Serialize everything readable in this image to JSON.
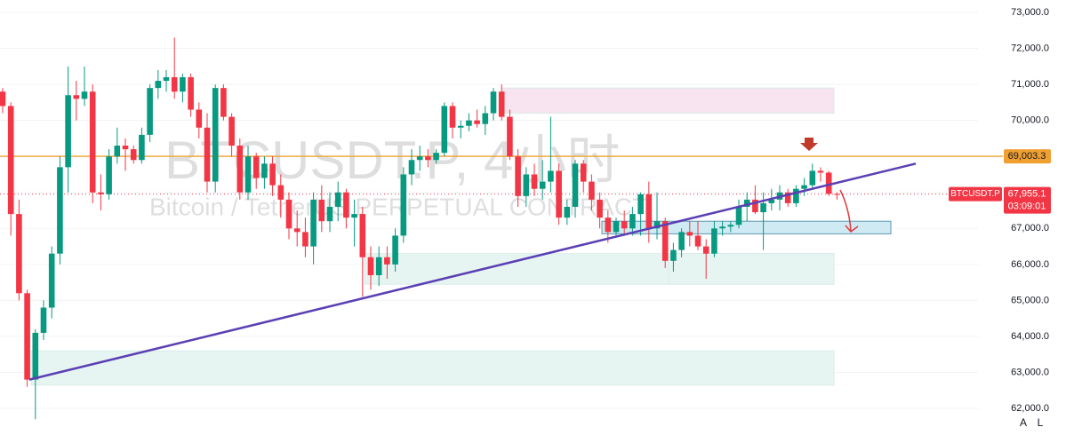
{
  "chart_data": {
    "type": "candlestick",
    "watermark": "BTCUSDT.P, 4小时",
    "watermark_subtitle": "Bitcoin / TetherUS PERPETUAL CONTRACT",
    "up_color": "#089981",
    "down_color": "#f23645",
    "ylim": [
      61262,
      73345
    ],
    "yticks": [
      {
        "value": 62000,
        "label": "62,000.0"
      },
      {
        "value": 63000,
        "label": "63,000.0"
      },
      {
        "value": 64000,
        "label": "64,000.0"
      },
      {
        "value": 65000,
        "label": "65,000.0"
      },
      {
        "value": 66000,
        "label": "66,000.0"
      },
      {
        "value": 67000,
        "label": "67,000.0"
      },
      {
        "value": 68000,
        "label": "68,000.0"
      },
      {
        "value": 69000,
        "label": "69,000.0"
      },
      {
        "value": 70000,
        "label": "70,000.0"
      },
      {
        "value": 71000,
        "label": "71,000.0"
      },
      {
        "value": 72000,
        "label": "72,000.0"
      },
      {
        "value": 73000,
        "label": "73,000.0"
      }
    ],
    "grid": true,
    "candles": [
      [
        70800,
        70900,
        70200,
        70400
      ],
      [
        70400,
        70500,
        66800,
        67400
      ],
      [
        67400,
        67800,
        65000,
        65200
      ],
      [
        65200,
        65300,
        62600,
        62800
      ],
      [
        62800,
        64200,
        61700,
        64100
      ],
      [
        64100,
        65000,
        63900,
        64800
      ],
      [
        64800,
        66500,
        64500,
        66300
      ],
      [
        66300,
        69000,
        66000,
        68700
      ],
      [
        68700,
        71500,
        68000,
        70700
      ],
      [
        70700,
        71100,
        70000,
        70600
      ],
      [
        70600,
        71500,
        70400,
        70800
      ],
      [
        70800,
        71000,
        67700,
        68000
      ],
      [
        68000,
        68500,
        67500,
        67950
      ],
      [
        67950,
        69200,
        67800,
        69000
      ],
      [
        69000,
        69800,
        68800,
        69300
      ],
      [
        69300,
        69500,
        68600,
        69200
      ],
      [
        69200,
        69300,
        68800,
        68900
      ],
      [
        68900,
        69800,
        68800,
        69600
      ],
      [
        69600,
        71000,
        69400,
        70900
      ],
      [
        70900,
        71400,
        70600,
        71100
      ],
      [
        71100,
        71400,
        70800,
        71200
      ],
      [
        71200,
        72300,
        70600,
        70800
      ],
      [
        70800,
        71300,
        70500,
        71200
      ],
      [
        71200,
        71300,
        70100,
        70300
      ],
      [
        70300,
        70500,
        69500,
        69800
      ],
      [
        69800,
        70200,
        68000,
        68300
      ],
      [
        68300,
        71000,
        68000,
        70900
      ],
      [
        70900,
        71000,
        70000,
        70100
      ],
      [
        70100,
        70200,
        69000,
        69300
      ],
      [
        69300,
        69500,
        67800,
        68000
      ],
      [
        68000,
        69300,
        67800,
        69000
      ],
      [
        69000,
        69100,
        68100,
        68400
      ],
      [
        68400,
        69000,
        68100,
        68800
      ],
      [
        68800,
        69000,
        67900,
        68200
      ],
      [
        68200,
        68500,
        67300,
        67800
      ],
      [
        67800,
        68000,
        66700,
        67000
      ],
      [
        67000,
        67500,
        66500,
        66900
      ],
      [
        66900,
        67300,
        66200,
        66500
      ],
      [
        66500,
        68000,
        66000,
        67800
      ],
      [
        67800,
        68200,
        66900,
        67200
      ],
      [
        67200,
        68000,
        66900,
        67600
      ],
      [
        67600,
        68300,
        67200,
        68000
      ],
      [
        68000,
        68100,
        67000,
        67300
      ],
      [
        67300,
        67800,
        66500,
        67400
      ],
      [
        67400,
        67600,
        65100,
        66200
      ],
      [
        66200,
        66500,
        65300,
        65700
      ],
      [
        65700,
        66500,
        65400,
        66200
      ],
      [
        66200,
        66500,
        65600,
        66000
      ],
      [
        66000,
        67000,
        65800,
        66800
      ],
      [
        66800,
        68700,
        66600,
        68500
      ],
      [
        68500,
        69200,
        68200,
        68900
      ],
      [
        68900,
        69300,
        68600,
        69000
      ],
      [
        69000,
        69200,
        68700,
        68900
      ],
      [
        68900,
        69200,
        68800,
        69100
      ],
      [
        69100,
        70500,
        69000,
        70400
      ],
      [
        70400,
        70500,
        69500,
        69800
      ],
      [
        69800,
        70000,
        69500,
        69850
      ],
      [
        69850,
        70200,
        69700,
        70000
      ],
      [
        70000,
        70300,
        69800,
        69900
      ],
      [
        69900,
        70400,
        69600,
        70200
      ],
      [
        70200,
        70900,
        70000,
        70800
      ],
      [
        70800,
        71000,
        70000,
        70100
      ],
      [
        70100,
        70300,
        68900,
        69000
      ],
      [
        69000,
        69200,
        67600,
        67900
      ],
      [
        67900,
        68700,
        67600,
        68500
      ],
      [
        68500,
        68800,
        67900,
        68100
      ],
      [
        68100,
        68900,
        67800,
        68300
      ],
      [
        68300,
        70100,
        68000,
        68600
      ],
      [
        68600,
        68800,
        67100,
        67300
      ],
      [
        67300,
        67800,
        67100,
        67600
      ],
      [
        67600,
        68900,
        67300,
        68800
      ],
      [
        68800,
        68900,
        68000,
        68300
      ],
      [
        68300,
        68500,
        67500,
        67800
      ],
      [
        67800,
        68000,
        67000,
        67300
      ],
      [
        67300,
        67500,
        66600,
        66900
      ],
      [
        66900,
        67300,
        66800,
        67200
      ],
      [
        67200,
        67500,
        66800,
        67000
      ],
      [
        67000,
        67600,
        66800,
        67400
      ],
      [
        67400,
        68000,
        66800,
        67950
      ],
      [
        67950,
        68300,
        66600,
        67000
      ],
      [
        67000,
        68000,
        66700,
        67200
      ],
      [
        67200,
        67300,
        65900,
        66100
      ],
      [
        66100,
        66600,
        65800,
        66400
      ],
      [
        66400,
        67000,
        66200,
        66900
      ],
      [
        66900,
        67200,
        66500,
        66800
      ],
      [
        66800,
        67200,
        66400,
        66500
      ],
      [
        66500,
        66700,
        65600,
        66300
      ],
      [
        66300,
        67200,
        66200,
        67000
      ],
      [
        67000,
        67200,
        66800,
        67050
      ],
      [
        67050,
        67200,
        66900,
        67100
      ],
      [
        67100,
        67800,
        67000,
        67600
      ],
      [
        67600,
        68000,
        67200,
        67800
      ],
      [
        67800,
        68200,
        67400,
        67450
      ],
      [
        67450,
        68000,
        66400,
        67700
      ],
      [
        67700,
        68100,
        67500,
        67800
      ],
      [
        67800,
        68200,
        67500,
        68000
      ],
      [
        68000,
        68100,
        67600,
        67700
      ],
      [
        67700,
        68200,
        67600,
        68100
      ],
      [
        68100,
        68400,
        67900,
        68200
      ],
      [
        68200,
        68800,
        68100,
        68600
      ],
      [
        68600,
        68700,
        68300,
        68550
      ],
      [
        68550,
        68600,
        67900,
        67960
      ],
      [
        67960,
        68000,
        67800,
        67955.1
      ]
    ],
    "hline": {
      "value": 69003.3,
      "label": "69,003.3",
      "color": "#f0a030"
    },
    "last_price": {
      "value": 67955.1,
      "label": "67,955.1",
      "symbol": "BTCUSDT.P",
      "countdown": "03:09:01",
      "color": "#f23645"
    },
    "trendline": {
      "from": 62800,
      "to": 68800,
      "color": "#5b3fb5"
    },
    "zones": [
      {
        "high": 70900,
        "low": 70200,
        "color": "#f8e4f0"
      },
      {
        "high": 67200,
        "low": 66850,
        "color": "#cfeaf3"
      },
      {
        "high": 66300,
        "low": 65450,
        "color": "#e6f5f2"
      },
      {
        "high": 66300,
        "low": 65450,
        "color": "#e6f5f2"
      },
      {
        "high": 63600,
        "low": 62650,
        "color": "#e6f5f2"
      }
    ],
    "scale_buttons": [
      "A",
      "L"
    ]
  }
}
